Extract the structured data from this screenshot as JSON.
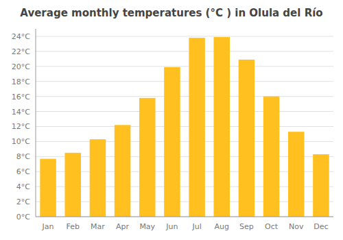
{
  "chart_data": {
    "type": "bar",
    "title": "Average monthly temperatures (°C ) in Olula del Río",
    "categories": [
      "Jan",
      "Feb",
      "Mar",
      "Apr",
      "May",
      "Jun",
      "Jul",
      "Aug",
      "Sep",
      "Oct",
      "Nov",
      "Dec"
    ],
    "values": [
      7.7,
      8.5,
      10.3,
      12.2,
      15.8,
      19.9,
      23.8,
      23.9,
      20.9,
      16.0,
      11.3,
      8.3
    ],
    "color": "#FFC020",
    "ylim": [
      0,
      25
    ],
    "yticks": [
      {
        "value": 0,
        "label": "0°C"
      },
      {
        "value": 2,
        "label": "2°C"
      },
      {
        "value": 4,
        "label": "4°C"
      },
      {
        "value": 6,
        "label": "6°C"
      },
      {
        "value": 8,
        "label": "8°C"
      },
      {
        "value": 10,
        "label": "10°C"
      },
      {
        "value": 12,
        "label": "12°C"
      },
      {
        "value": 14,
        "label": "14°C"
      },
      {
        "value": 16,
        "label": "16°C"
      },
      {
        "value": 18,
        "label": "18°C"
      },
      {
        "value": 20,
        "label": "20°C"
      },
      {
        "value": 22,
        "label": "22°C"
      },
      {
        "value": 24,
        "label": "24°C"
      }
    ],
    "grid": true
  }
}
